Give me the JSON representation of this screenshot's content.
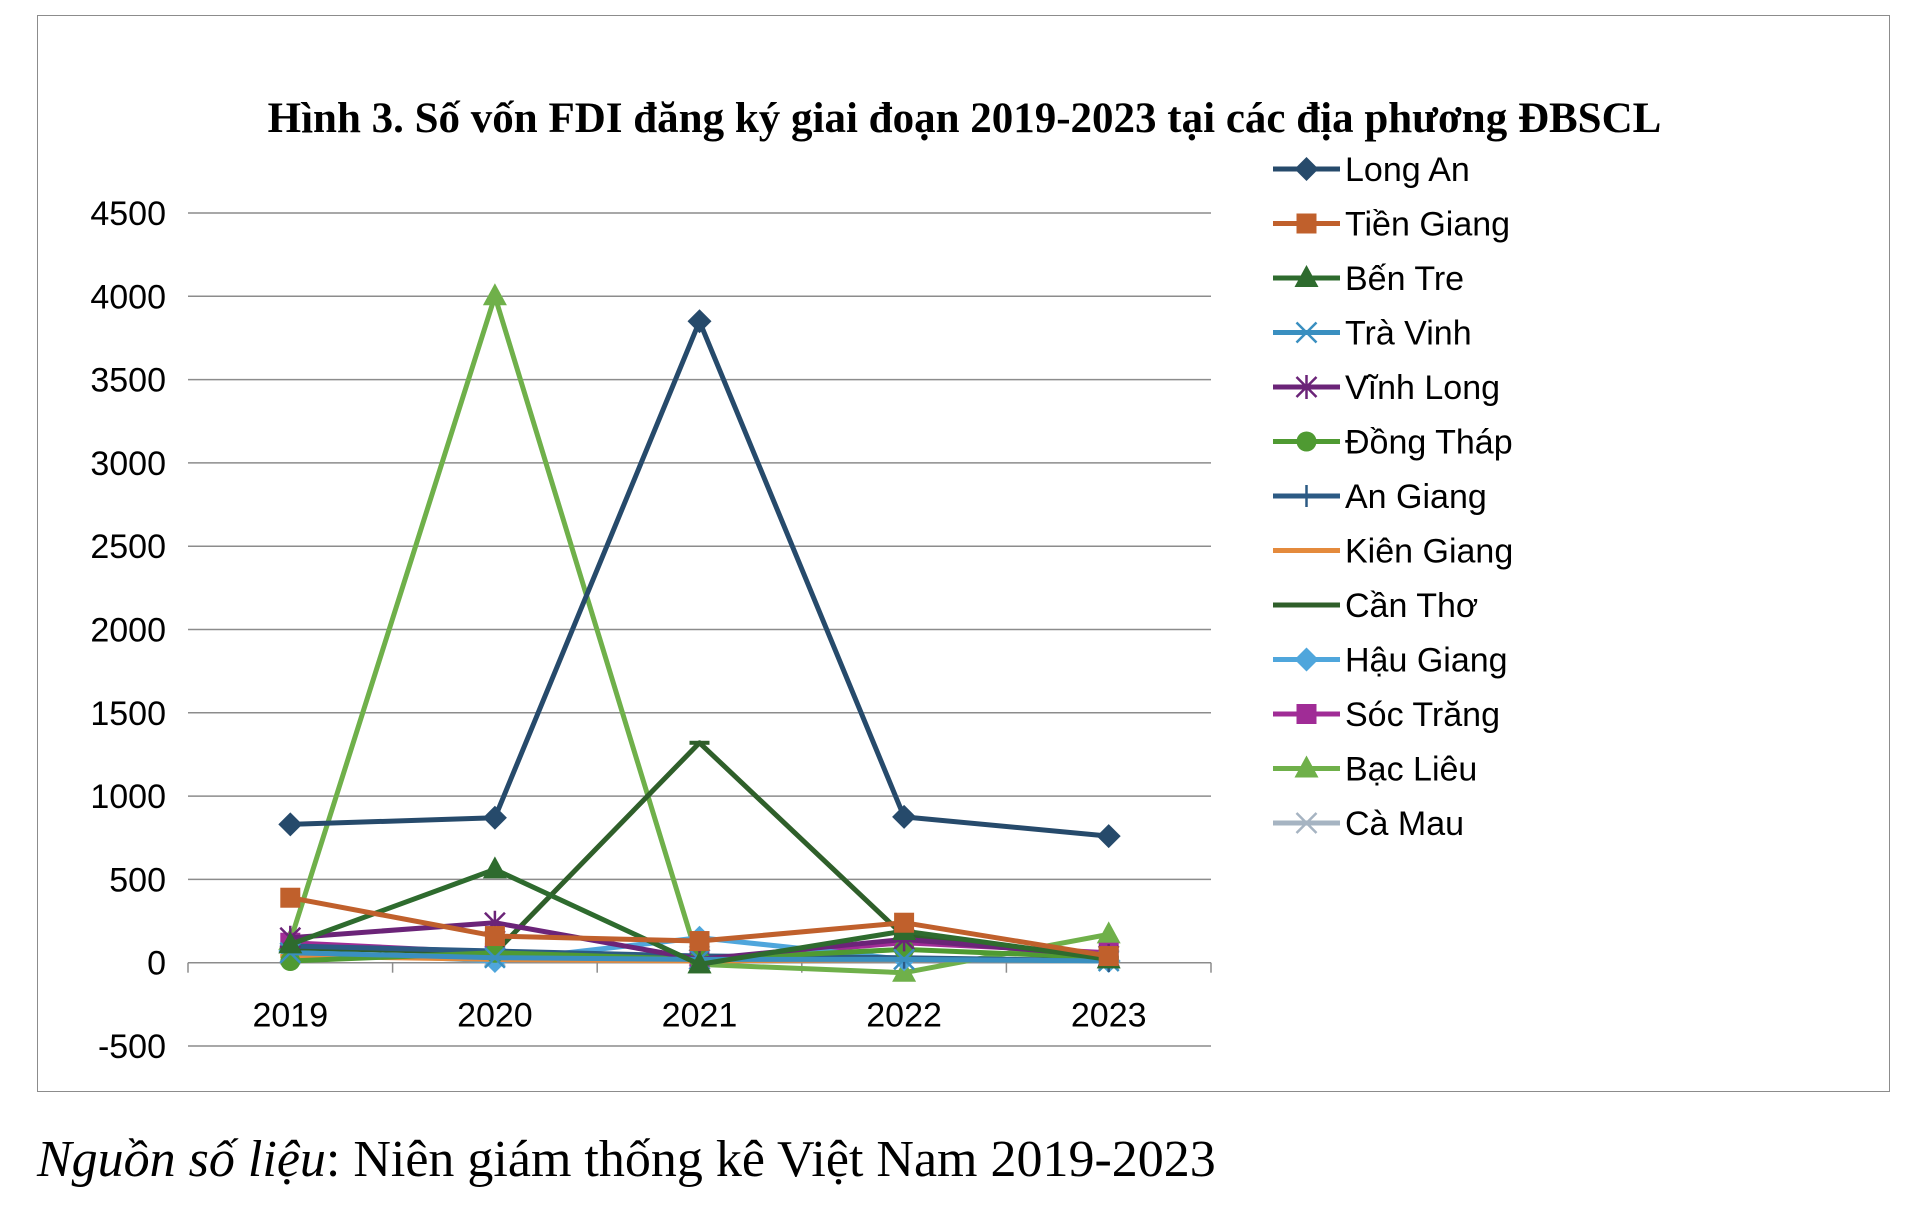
{
  "chart_data": {
    "type": "line",
    "title": "Hình 3. Số vốn FDI đăng ký giai đoạn 2019-2023 tại các địa phương ĐBSCL",
    "categories": [
      "2019",
      "2020",
      "2021",
      "2022",
      "2023"
    ],
    "ylim": [
      -500,
      4500
    ],
    "yticks": [
      -500,
      0,
      500,
      1000,
      1500,
      2000,
      2500,
      3000,
      3500,
      4000,
      4500
    ],
    "xlabel": "",
    "ylabel": "",
    "grid": true,
    "legend_position": "right",
    "series": [
      {
        "name": "Long An",
        "color": "#264a6b",
        "marker": "diamond",
        "values": [
          830,
          870,
          3850,
          875,
          760
        ]
      },
      {
        "name": "Tiền Giang",
        "color": "#c0602c",
        "marker": "square",
        "values": [
          390,
          160,
          130,
          240,
          40
        ]
      },
      {
        "name": "Bến Tre",
        "color": "#2e6b2e",
        "marker": "triangle",
        "values": [
          110,
          560,
          -10,
          190,
          20
        ]
      },
      {
        "name": "Trà Vinh",
        "color": "#3a8fc0",
        "marker": "x",
        "values": [
          60,
          30,
          20,
          20,
          10
        ]
      },
      {
        "name": "Vĩnh Long",
        "color": "#6b2478",
        "marker": "star",
        "values": [
          150,
          240,
          20,
          140,
          40
        ]
      },
      {
        "name": "Đồng Tháp",
        "color": "#4f9a32",
        "marker": "circle",
        "values": [
          10,
          60,
          20,
          80,
          30
        ]
      },
      {
        "name": "An Giang",
        "color": "#2c5a84",
        "marker": "plus",
        "values": [
          100,
          70,
          40,
          30,
          10
        ]
      },
      {
        "name": "Kiên Giang",
        "color": "#e48a3c",
        "marker": "dash",
        "values": [
          40,
          20,
          10,
          20,
          10
        ]
      },
      {
        "name": "Cần Thơ",
        "color": "#2f5f2a",
        "marker": "dash",
        "values": [
          90,
          60,
          1320,
          160,
          30
        ]
      },
      {
        "name": "Hậu Giang",
        "color": "#4fa6dc",
        "marker": "diamond",
        "values": [
          70,
          10,
          150,
          20,
          10
        ]
      },
      {
        "name": "Sóc Trăng",
        "color": "#a02c96",
        "marker": "square",
        "values": [
          120,
          60,
          20,
          120,
          60
        ]
      },
      {
        "name": "Bạc Liêu",
        "color": "#6fb04a",
        "marker": "triangle",
        "values": [
          130,
          4000,
          -10,
          -60,
          170
        ]
      },
      {
        "name": "Cà Mau",
        "color": "#a6b4c2",
        "marker": "x",
        "values": [
          50,
          40,
          40,
          20,
          20
        ]
      }
    ]
  },
  "source_note": {
    "label": "Nguồn số liệu",
    "text": ": Niên giám thống kê Việt Nam 2019-2023"
  }
}
